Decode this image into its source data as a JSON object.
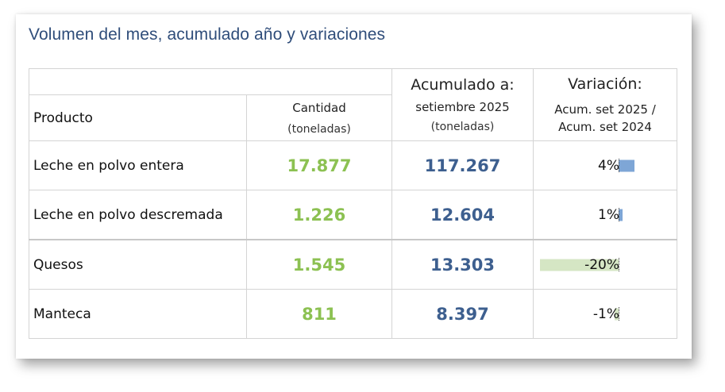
{
  "title": "Volumen del mes, acumulado año y variaciones",
  "header": {
    "product": "Producto",
    "qty_label": "Cantidad",
    "qty_unit": "(toneladas)",
    "acc_label": "Acumulado a:",
    "acc_period": "setiembre 2025",
    "acc_unit": "(toneladas)",
    "var_label": "Variación:",
    "var_line1": "Acum. set 2025 /",
    "var_line2": "Acum. set 2024"
  },
  "rows": [
    {
      "product": "Leche en polvo entera",
      "qty": "17.877",
      "acc": "117.267",
      "var": "4%",
      "var_value": 4
    },
    {
      "product": "Leche en polvo descremada",
      "qty": "1.226",
      "acc": "12.604",
      "var": "1%",
      "var_value": 1
    },
    {
      "product": "Quesos",
      "qty": "1.545",
      "acc": "13.303",
      "var": "-20%",
      "var_value": -20
    },
    {
      "product": "Manteca",
      "qty": "811",
      "acc": "8.397",
      "var": "-1%",
      "var_value": -1
    }
  ],
  "colors": {
    "quantity": "#8cc152",
    "accumulated": "#3d5f8f",
    "bar_positive": "#7ea6d6",
    "bar_negative": "#d5e6c4"
  }
}
